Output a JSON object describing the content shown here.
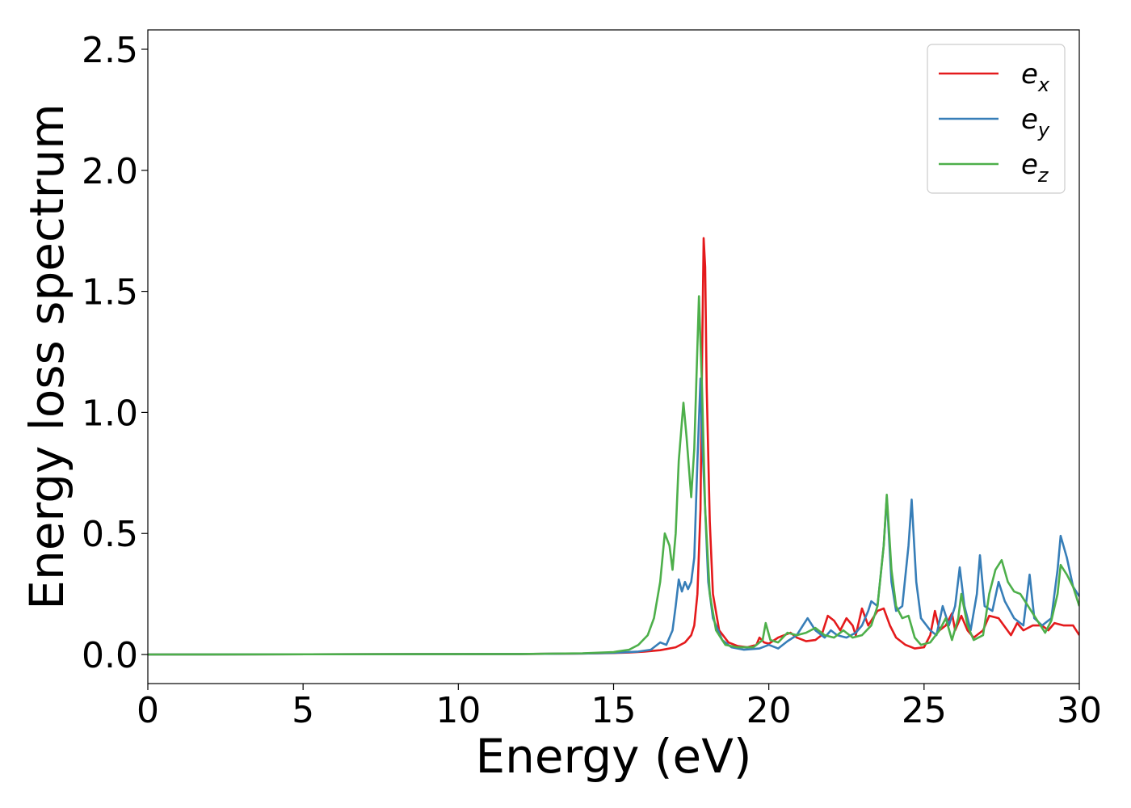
{
  "chart_data": {
    "type": "line",
    "title": "",
    "xlabel": "Energy (eV)",
    "ylabel": "Energy loss spectrum",
    "xlim": [
      0,
      30
    ],
    "ylim": [
      -0.12,
      2.58
    ],
    "xticks": [
      0,
      5,
      10,
      15,
      20,
      25,
      30
    ],
    "xtick_labels": [
      "0",
      "5",
      "10",
      "15",
      "20",
      "25",
      "30"
    ],
    "yticks": [
      0.0,
      0.5,
      1.0,
      1.5,
      2.0,
      2.5
    ],
    "ytick_labels": [
      "0.0",
      "0.5",
      "1.0",
      "1.5",
      "2.0",
      "2.5"
    ],
    "grid": false,
    "legend": {
      "placement": "top-right"
    },
    "series": [
      {
        "name": "e_x",
        "name_base": "e",
        "name_sub": "x",
        "color": "#e41a1c",
        "points": [
          [
            0,
            0
          ],
          [
            12,
            0.002
          ],
          [
            14,
            0.004
          ],
          [
            15,
            0.006
          ],
          [
            15.5,
            0.008
          ],
          [
            16,
            0.012
          ],
          [
            16.5,
            0.018
          ],
          [
            17,
            0.03
          ],
          [
            17.3,
            0.05
          ],
          [
            17.5,
            0.08
          ],
          [
            17.6,
            0.12
          ],
          [
            17.7,
            0.25
          ],
          [
            17.8,
            0.6
          ],
          [
            17.85,
            1.2
          ],
          [
            17.9,
            1.72
          ],
          [
            17.95,
            1.6
          ],
          [
            18.0,
            1.1
          ],
          [
            18.1,
            0.55
          ],
          [
            18.2,
            0.25
          ],
          [
            18.4,
            0.1
          ],
          [
            18.7,
            0.05
          ],
          [
            19.0,
            0.035
          ],
          [
            19.3,
            0.03
          ],
          [
            19.6,
            0.04
          ],
          [
            19.7,
            0.07
          ],
          [
            19.85,
            0.05
          ],
          [
            20.0,
            0.045
          ],
          [
            20.3,
            0.07
          ],
          [
            20.5,
            0.08
          ],
          [
            20.7,
            0.09
          ],
          [
            20.9,
            0.07
          ],
          [
            21.2,
            0.055
          ],
          [
            21.5,
            0.06
          ],
          [
            21.7,
            0.08
          ],
          [
            21.9,
            0.16
          ],
          [
            22.1,
            0.14
          ],
          [
            22.3,
            0.1
          ],
          [
            22.5,
            0.15
          ],
          [
            22.7,
            0.12
          ],
          [
            22.8,
            0.08
          ],
          [
            23.0,
            0.19
          ],
          [
            23.2,
            0.12
          ],
          [
            23.5,
            0.18
          ],
          [
            23.7,
            0.19
          ],
          [
            23.9,
            0.12
          ],
          [
            24.1,
            0.07
          ],
          [
            24.4,
            0.04
          ],
          [
            24.7,
            0.025
          ],
          [
            25.0,
            0.03
          ],
          [
            25.2,
            0.08
          ],
          [
            25.35,
            0.18
          ],
          [
            25.5,
            0.1
          ],
          [
            25.7,
            0.12
          ],
          [
            25.9,
            0.17
          ],
          [
            26.0,
            0.1
          ],
          [
            26.2,
            0.16
          ],
          [
            26.4,
            0.1
          ],
          [
            26.6,
            0.07
          ],
          [
            26.9,
            0.1
          ],
          [
            27.1,
            0.16
          ],
          [
            27.4,
            0.15
          ],
          [
            27.8,
            0.08
          ],
          [
            28.0,
            0.13
          ],
          [
            28.2,
            0.1
          ],
          [
            28.5,
            0.12
          ],
          [
            28.8,
            0.12
          ],
          [
            29.0,
            0.1
          ],
          [
            29.2,
            0.13
          ],
          [
            29.5,
            0.12
          ],
          [
            29.8,
            0.12
          ],
          [
            30,
            0.08
          ]
        ]
      },
      {
        "name": "e_y",
        "name_base": "e",
        "name_sub": "y",
        "color": "#377eb8",
        "points": [
          [
            0,
            0
          ],
          [
            12,
            0.002
          ],
          [
            14,
            0.004
          ],
          [
            15,
            0.007
          ],
          [
            15.8,
            0.012
          ],
          [
            16.2,
            0.02
          ],
          [
            16.5,
            0.05
          ],
          [
            16.7,
            0.04
          ],
          [
            16.9,
            0.1
          ],
          [
            17.0,
            0.2
          ],
          [
            17.1,
            0.31
          ],
          [
            17.2,
            0.26
          ],
          [
            17.3,
            0.3
          ],
          [
            17.4,
            0.27
          ],
          [
            17.5,
            0.3
          ],
          [
            17.6,
            0.4
          ],
          [
            17.7,
            0.8
          ],
          [
            17.8,
            1.14
          ],
          [
            17.85,
            0.9
          ],
          [
            17.95,
            0.6
          ],
          [
            18.05,
            0.3
          ],
          [
            18.2,
            0.15
          ],
          [
            18.5,
            0.06
          ],
          [
            18.8,
            0.03
          ],
          [
            19.2,
            0.02
          ],
          [
            19.7,
            0.025
          ],
          [
            20.0,
            0.04
          ],
          [
            20.3,
            0.025
          ],
          [
            20.6,
            0.055
          ],
          [
            20.9,
            0.08
          ],
          [
            21.1,
            0.12
          ],
          [
            21.25,
            0.15
          ],
          [
            21.5,
            0.1
          ],
          [
            21.8,
            0.07
          ],
          [
            22.0,
            0.1
          ],
          [
            22.2,
            0.08
          ],
          [
            22.5,
            0.07
          ],
          [
            22.8,
            0.09
          ],
          [
            23.0,
            0.12
          ],
          [
            23.2,
            0.18
          ],
          [
            23.3,
            0.22
          ],
          [
            23.5,
            0.2
          ],
          [
            23.7,
            0.45
          ],
          [
            23.8,
            0.65
          ],
          [
            23.95,
            0.3
          ],
          [
            24.1,
            0.18
          ],
          [
            24.3,
            0.2
          ],
          [
            24.5,
            0.45
          ],
          [
            24.6,
            0.64
          ],
          [
            24.75,
            0.3
          ],
          [
            24.9,
            0.15
          ],
          [
            25.2,
            0.1
          ],
          [
            25.4,
            0.08
          ],
          [
            25.6,
            0.2
          ],
          [
            25.8,
            0.12
          ],
          [
            26.0,
            0.2
          ],
          [
            26.15,
            0.36
          ],
          [
            26.3,
            0.2
          ],
          [
            26.5,
            0.1
          ],
          [
            26.7,
            0.25
          ],
          [
            26.8,
            0.41
          ],
          [
            26.95,
            0.2
          ],
          [
            27.2,
            0.18
          ],
          [
            27.4,
            0.3
          ],
          [
            27.6,
            0.22
          ],
          [
            27.9,
            0.15
          ],
          [
            28.2,
            0.12
          ],
          [
            28.4,
            0.33
          ],
          [
            28.55,
            0.15
          ],
          [
            28.8,
            0.12
          ],
          [
            29.1,
            0.15
          ],
          [
            29.3,
            0.35
          ],
          [
            29.4,
            0.49
          ],
          [
            29.6,
            0.4
          ],
          [
            29.8,
            0.28
          ],
          [
            30,
            0.24
          ]
        ]
      },
      {
        "name": "e_z",
        "name_base": "e",
        "name_sub": "z",
        "color": "#4daf4a",
        "points": [
          [
            0,
            0
          ],
          [
            12,
            0.002
          ],
          [
            14,
            0.005
          ],
          [
            15,
            0.01
          ],
          [
            15.5,
            0.02
          ],
          [
            15.8,
            0.04
          ],
          [
            16.1,
            0.08
          ],
          [
            16.3,
            0.15
          ],
          [
            16.5,
            0.3
          ],
          [
            16.65,
            0.5
          ],
          [
            16.8,
            0.45
          ],
          [
            16.9,
            0.35
          ],
          [
            17.0,
            0.5
          ],
          [
            17.1,
            0.8
          ],
          [
            17.25,
            1.04
          ],
          [
            17.35,
            0.9
          ],
          [
            17.5,
            0.65
          ],
          [
            17.6,
            0.85
          ],
          [
            17.75,
            1.48
          ],
          [
            17.85,
            1.1
          ],
          [
            17.95,
            0.6
          ],
          [
            18.1,
            0.25
          ],
          [
            18.3,
            0.1
          ],
          [
            18.6,
            0.04
          ],
          [
            19.0,
            0.03
          ],
          [
            19.5,
            0.03
          ],
          [
            19.8,
            0.06
          ],
          [
            19.9,
            0.13
          ],
          [
            20.05,
            0.06
          ],
          [
            20.3,
            0.05
          ],
          [
            20.6,
            0.09
          ],
          [
            20.9,
            0.08
          ],
          [
            21.2,
            0.09
          ],
          [
            21.5,
            0.11
          ],
          [
            21.8,
            0.08
          ],
          [
            22.1,
            0.07
          ],
          [
            22.4,
            0.1
          ],
          [
            22.7,
            0.07
          ],
          [
            23.0,
            0.08
          ],
          [
            23.3,
            0.12
          ],
          [
            23.5,
            0.2
          ],
          [
            23.7,
            0.45
          ],
          [
            23.8,
            0.66
          ],
          [
            23.95,
            0.35
          ],
          [
            24.1,
            0.2
          ],
          [
            24.3,
            0.15
          ],
          [
            24.5,
            0.16
          ],
          [
            24.7,
            0.07
          ],
          [
            24.9,
            0.04
          ],
          [
            25.2,
            0.05
          ],
          [
            25.5,
            0.1
          ],
          [
            25.7,
            0.15
          ],
          [
            25.9,
            0.06
          ],
          [
            26.1,
            0.15
          ],
          [
            26.2,
            0.25
          ],
          [
            26.4,
            0.12
          ],
          [
            26.6,
            0.06
          ],
          [
            26.9,
            0.08
          ],
          [
            27.1,
            0.25
          ],
          [
            27.3,
            0.35
          ],
          [
            27.5,
            0.39
          ],
          [
            27.7,
            0.3
          ],
          [
            27.9,
            0.26
          ],
          [
            28.1,
            0.25
          ],
          [
            28.3,
            0.21
          ],
          [
            28.6,
            0.15
          ],
          [
            28.9,
            0.09
          ],
          [
            29.1,
            0.14
          ],
          [
            29.3,
            0.25
          ],
          [
            29.4,
            0.37
          ],
          [
            29.6,
            0.33
          ],
          [
            29.8,
            0.28
          ],
          [
            30,
            0.2
          ]
        ]
      }
    ]
  }
}
